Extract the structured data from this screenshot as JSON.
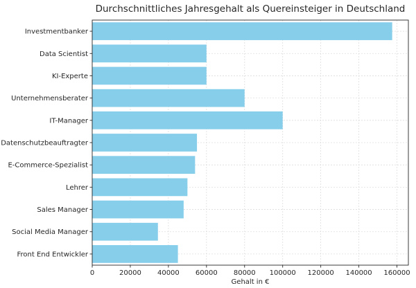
{
  "chart_data": {
    "type": "bar",
    "orientation": "horizontal",
    "title": "Durchschnittliches Jahresgehalt als Quereinsteiger in Deutschland",
    "xlabel": "Gehalt in €",
    "ylabel": "",
    "categories": [
      "Investmentbanker",
      "Data Scientist",
      "KI-Experte",
      "Unternehmensberater",
      "IT-Manager",
      "Datenschutzbeauftragter",
      "E-Commerce-Spezialist",
      "Lehrer",
      "Sales Manager",
      "Social Media Manager",
      "Front End Entwickler"
    ],
    "values": [
      157500,
      60000,
      60000,
      80000,
      100000,
      55000,
      54000,
      50000,
      48000,
      34500,
      45000
    ],
    "xlim": [
      0,
      166000
    ],
    "xticks": [
      0,
      20000,
      40000,
      60000,
      80000,
      100000,
      120000,
      140000,
      160000
    ],
    "grid": true,
    "bar_color": "#87ceeb"
  }
}
